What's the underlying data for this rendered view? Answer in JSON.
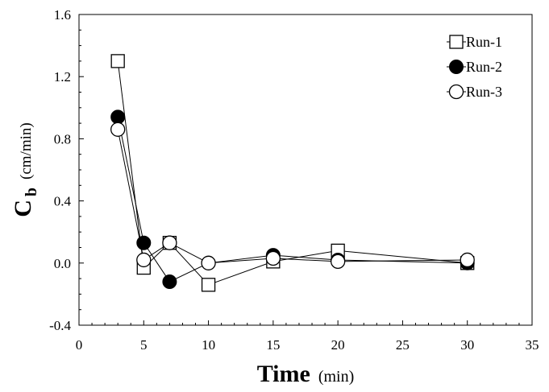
{
  "chart_data": {
    "type": "line",
    "title": "",
    "xlabel": {
      "main": "Time",
      "unit": "(min)"
    },
    "ylabel": {
      "main": "C",
      "sub": "b",
      "unit": "(cm/min)"
    },
    "xlim": [
      0,
      35
    ],
    "ylim": [
      -0.4,
      1.6
    ],
    "xticks": [
      0,
      5,
      10,
      15,
      20,
      25,
      30,
      35
    ],
    "yticks": [
      -0.4,
      0.0,
      0.4,
      0.8,
      1.2,
      1.6
    ],
    "xtick_labels": [
      "0",
      "5",
      "10",
      "15",
      "20",
      "25",
      "30",
      "35"
    ],
    "ytick_labels": [
      "-0.4",
      "0.0",
      "0.4",
      "0.8",
      "1.2",
      "1.6"
    ],
    "grid": false,
    "legend_position": "top-right",
    "series": [
      {
        "name": "Run-1",
        "marker": "open-square",
        "x": [
          3,
          5,
          7,
          10,
          15,
          20,
          30
        ],
        "y": [
          1.3,
          -0.03,
          0.13,
          -0.14,
          0.01,
          0.08,
          0.0
        ]
      },
      {
        "name": "Run-2",
        "marker": "filled-circle",
        "x": [
          3,
          5,
          7,
          10,
          15,
          20,
          30
        ],
        "y": [
          0.94,
          0.13,
          -0.12,
          0.0,
          0.05,
          0.02,
          0.0
        ]
      },
      {
        "name": "Run-3",
        "marker": "open-circle",
        "x": [
          3,
          5,
          7,
          10,
          15,
          20,
          30
        ],
        "y": [
          0.86,
          0.02,
          0.13,
          0.0,
          0.03,
          0.01,
          0.02
        ]
      }
    ]
  }
}
